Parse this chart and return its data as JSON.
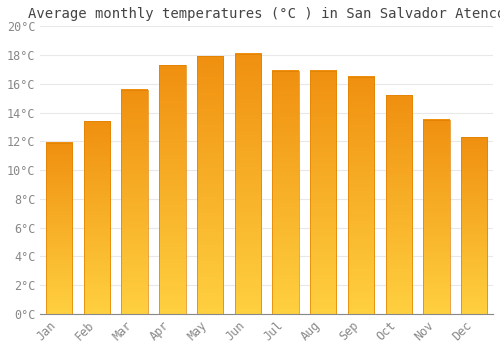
{
  "title": "Average monthly temperatures (°C ) in San Salvador Atenco",
  "months": [
    "Jan",
    "Feb",
    "Mar",
    "Apr",
    "May",
    "Jun",
    "Jul",
    "Aug",
    "Sep",
    "Oct",
    "Nov",
    "Dec"
  ],
  "values": [
    11.9,
    13.4,
    15.6,
    17.3,
    17.9,
    18.1,
    16.9,
    16.9,
    16.5,
    15.2,
    13.5,
    12.3
  ],
  "bar_color_main": "#FFA020",
  "bar_color_light": "#FFD060",
  "ylim": [
    0,
    20
  ],
  "yticks": [
    0,
    2,
    4,
    6,
    8,
    10,
    12,
    14,
    16,
    18,
    20
  ],
  "ytick_labels": [
    "0°C",
    "2°C",
    "4°C",
    "6°C",
    "8°C",
    "10°C",
    "12°C",
    "14°C",
    "16°C",
    "18°C",
    "20°C"
  ],
  "background_color": "#FFFFFF",
  "grid_color": "#E8E8E8",
  "title_fontsize": 10,
  "tick_fontsize": 8.5,
  "font_family": "monospace"
}
